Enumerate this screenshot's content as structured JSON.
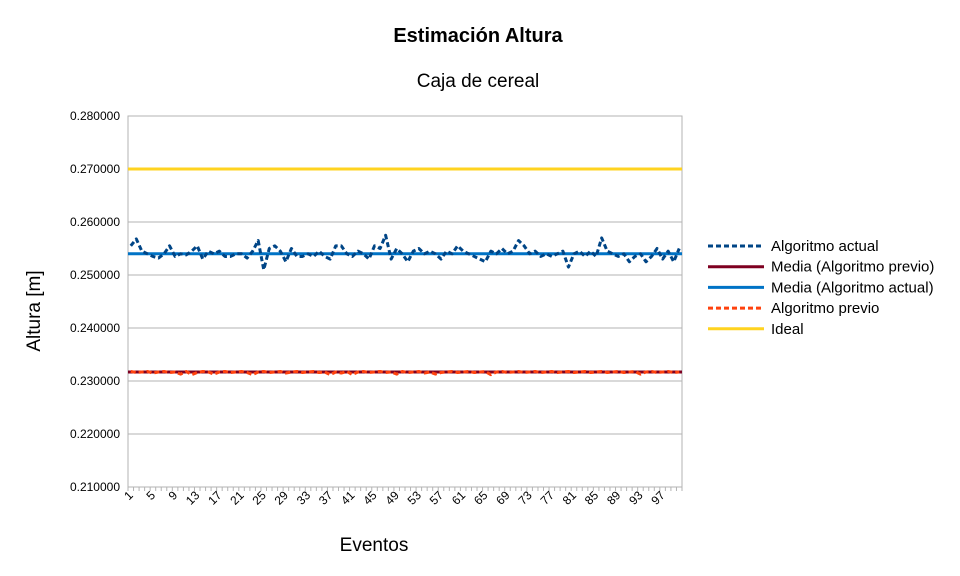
{
  "chart_data": {
    "type": "line",
    "title": "Estimación Altura",
    "subtitle": "Caja de cereal",
    "xlabel": "Eventos",
    "ylabel": "Altura [m]",
    "ylim": [
      0.21,
      0.28
    ],
    "yticks": [
      "0.280000",
      "0.270000",
      "0.260000",
      "0.250000",
      "0.240000",
      "0.230000",
      "0.220000",
      "0.210000"
    ],
    "ytick_values": [
      0.28,
      0.27,
      0.26,
      0.25,
      0.24,
      0.23,
      0.22,
      0.21
    ],
    "x": [
      1,
      2,
      3,
      4,
      5,
      6,
      7,
      8,
      9,
      10,
      11,
      12,
      13,
      14,
      15,
      16,
      17,
      18,
      19,
      20,
      21,
      22,
      23,
      24,
      25,
      26,
      27,
      28,
      29,
      30,
      31,
      32,
      33,
      34,
      35,
      36,
      37,
      38,
      39,
      40,
      41,
      42,
      43,
      44,
      45,
      46,
      47,
      48,
      49,
      50,
      51,
      52,
      53,
      54,
      55,
      56,
      57,
      58,
      59,
      60,
      61,
      62,
      63,
      64,
      65,
      66,
      67,
      68,
      69,
      70,
      71,
      72,
      73,
      74,
      75,
      76,
      77,
      78,
      79,
      80,
      81,
      82,
      83,
      84,
      85,
      86,
      87,
      88,
      89,
      90,
      91,
      92,
      93,
      94,
      95,
      96,
      97,
      98,
      99,
      100
    ],
    "xtick_labels": [
      "1",
      "5",
      "9",
      "13",
      "17",
      "21",
      "25",
      "29",
      "33",
      "37",
      "41",
      "45",
      "49",
      "53",
      "57",
      "61",
      "65",
      "69",
      "73",
      "77",
      "81",
      "85",
      "89",
      "93",
      "97"
    ],
    "grid": true,
    "legend_position": "right",
    "series": [
      {
        "name": "Algoritmo actual",
        "style": "dashed",
        "color": "#004586",
        "values": [
          0.2555,
          0.2568,
          0.2545,
          0.254,
          0.2535,
          0.2532,
          0.254,
          0.2555,
          0.2535,
          0.254,
          0.2538,
          0.2545,
          0.2555,
          0.253,
          0.2545,
          0.254,
          0.2545,
          0.2535,
          0.2535,
          0.254,
          0.254,
          0.2532,
          0.2545,
          0.2565,
          0.251,
          0.255,
          0.2555,
          0.2545,
          0.2525,
          0.255,
          0.2535,
          0.2535,
          0.254,
          0.2535,
          0.2545,
          0.2535,
          0.253,
          0.2555,
          0.2555,
          0.254,
          0.2535,
          0.2545,
          0.254,
          0.253,
          0.2555,
          0.255,
          0.2575,
          0.253,
          0.255,
          0.254,
          0.2525,
          0.2545,
          0.255,
          0.254,
          0.2545,
          0.254,
          0.253,
          0.2545,
          0.254,
          0.2555,
          0.2545,
          0.254,
          0.2535,
          0.253,
          0.2525,
          0.2545,
          0.254,
          0.255,
          0.254,
          0.2545,
          0.2565,
          0.2555,
          0.254,
          0.2545,
          0.2535,
          0.254,
          0.2535,
          0.254,
          0.2545,
          0.2515,
          0.254,
          0.2545,
          0.2535,
          0.2545,
          0.2535,
          0.257,
          0.2545,
          0.254,
          0.2535,
          0.254,
          0.2525,
          0.2535,
          0.254,
          0.2525,
          0.2535,
          0.255,
          0.253,
          0.2545,
          0.2525,
          0.255
        ]
      },
      {
        "name": "Media (Algoritmo previo)",
        "style": "solid",
        "color": "#7e0021",
        "values_constant": 0.2317
      },
      {
        "name": "Media (Algoritmo actual)",
        "style": "solid",
        "color": "#0073c6",
        "values_constant": 0.254
      },
      {
        "name": "Algoritmo previo",
        "style": "dashed",
        "color": "#ff420e",
        "values": [
          0.2318,
          0.2316,
          0.2317,
          0.2318,
          0.2315,
          0.2317,
          0.2318,
          0.2316,
          0.2317,
          0.2313,
          0.2318,
          0.2312,
          0.2316,
          0.2318,
          0.2317,
          0.2313,
          0.2317,
          0.2318,
          0.2316,
          0.2317,
          0.2318,
          0.2316,
          0.2312,
          0.2317,
          0.2318,
          0.2316,
          0.2317,
          0.2318,
          0.2315,
          0.2317,
          0.2318,
          0.2316,
          0.2317,
          0.2318,
          0.2316,
          0.2317,
          0.2312,
          0.2317,
          0.2315,
          0.2318,
          0.2312,
          0.2317,
          0.2318,
          0.2316,
          0.2317,
          0.2318,
          0.2316,
          0.2317,
          0.2313,
          0.2318,
          0.2316,
          0.2317,
          0.2318,
          0.2315,
          0.2317,
          0.2313,
          0.2316,
          0.2317,
          0.2318,
          0.2316,
          0.2317,
          0.2318,
          0.2316,
          0.2317,
          0.2318,
          0.2312,
          0.2317,
          0.2318,
          0.2316,
          0.2317,
          0.2318,
          0.2316,
          0.2317,
          0.2318,
          0.2316,
          0.2317,
          0.2318,
          0.2316,
          0.2317,
          0.2318,
          0.2316,
          0.2317,
          0.2318,
          0.2316,
          0.2317,
          0.2318,
          0.2316,
          0.2317,
          0.2318,
          0.2316,
          0.2317,
          0.2318,
          0.2313,
          0.2317,
          0.2318,
          0.2316,
          0.2317,
          0.2318,
          0.2316,
          0.2317
        ]
      },
      {
        "name": "Ideal",
        "style": "solid",
        "color": "#ffd320",
        "values_constant": 0.27
      }
    ]
  }
}
